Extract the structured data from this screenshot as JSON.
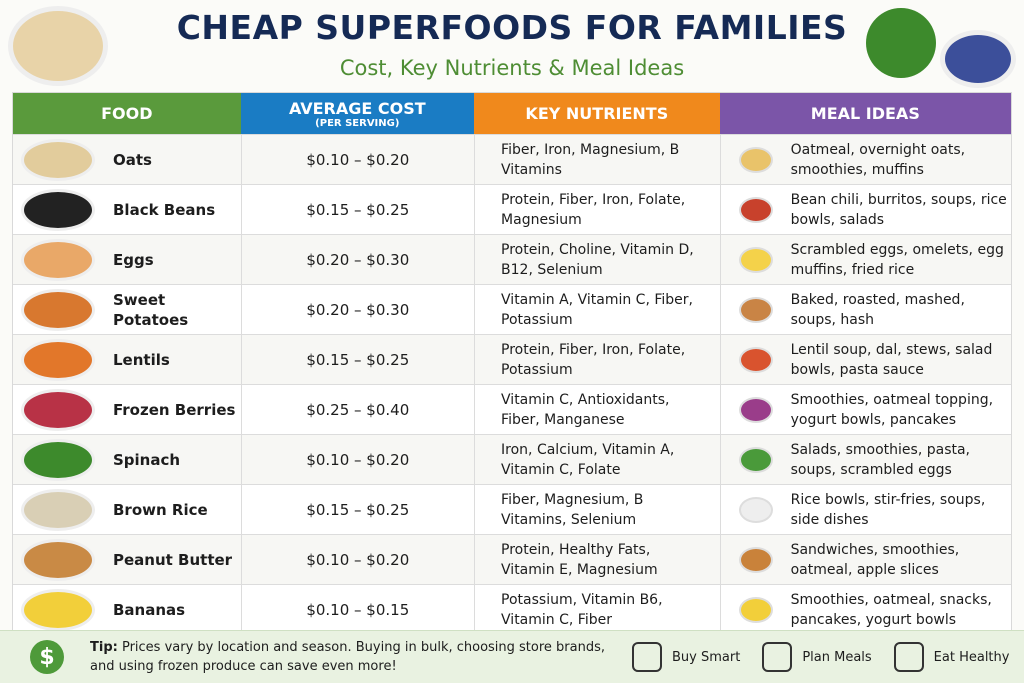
{
  "header": {
    "title": "CHEAP SUPERFOODS FOR FAMILIES",
    "subtitle": "Cost, Key Nutrients & Meal Ideas"
  },
  "table": {
    "columns": [
      "FOOD",
      "AVERAGE COST",
      "KEY NUTRIENTS",
      "MEAL IDEAS"
    ],
    "cost_note": "(PER SERVING)",
    "rows": [
      [
        "Oats",
        "$0.10 – $0.20",
        "Fiber, Iron, Magnesium, B Vitamins",
        "Oatmeal, overnight oats, smoothies, muffins"
      ],
      [
        "Black Beans",
        "$0.15 – $0.25",
        "Protein, Fiber, Iron, Folate, Magnesium",
        "Bean chili, burritos, soups, rice bowls, salads"
      ],
      [
        "Eggs",
        "$0.20 – $0.30",
        "Protein, Choline, Vitamin D, B12, Selenium",
        "Scrambled eggs, omelets, egg muffins, fried rice"
      ],
      [
        "Sweet Potatoes",
        "$0.20 – $0.30",
        "Vitamin A, Vitamin C, Fiber, Potassium",
        "Baked, roasted, mashed, soups, hash"
      ],
      [
        "Lentils",
        "$0.15 – $0.25",
        "Protein, Fiber, Iron, Folate, Potassium",
        "Lentil soup, dal, stews, salad bowls, pasta sauce"
      ],
      [
        "Frozen Berries",
        "$0.25 – $0.40",
        "Vitamin C, Antioxidants, Fiber, Manganese",
        "Smoothies, oatmeal topping, yogurt bowls, pancakes"
      ],
      [
        "Spinach",
        "$0.10 – $0.20",
        "Iron, Calcium, Vitamin A, Vitamin C, Folate",
        "Salads, smoothies, pasta, soups, scrambled eggs"
      ],
      [
        "Brown Rice",
        "$0.15 – $0.25",
        "Fiber, Magnesium, B Vitamins, Selenium",
        "Rice bowls, stir-fries, soups, side dishes"
      ],
      [
        "Peanut Butter",
        "$0.10 – $0.20",
        "Protein, Healthy Fats, Vitamin E, Magnesium",
        "Sandwiches, smoothies, oatmeal, apple slices"
      ],
      [
        "Bananas",
        "$0.10 – $0.15",
        "Potassium, Vitamin B6, Vitamin C, Fiber",
        "Smoothies, oatmeal, snacks, pancakes, yogurt bowls"
      ]
    ]
  },
  "footer": {
    "tip_label": "Tip:",
    "tip_text": "Prices vary by location and season. Buying in bulk, choosing store brands, and using frozen produce can save even more!",
    "badges": [
      "Buy Smart",
      "Plan Meals",
      "Eat Healthy"
    ]
  }
}
